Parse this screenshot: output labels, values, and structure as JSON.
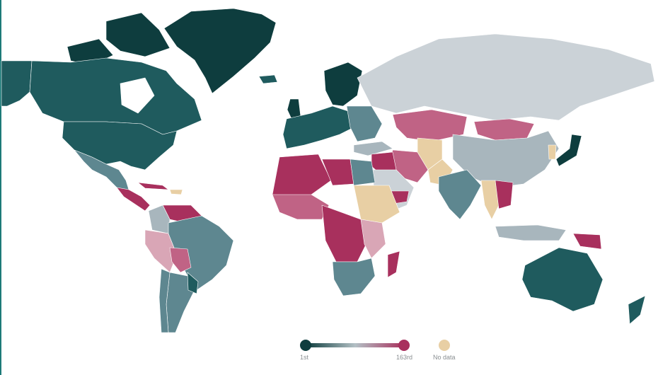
{
  "colors": {
    "best": "#0e3d3e",
    "high": "#1f5b5e",
    "upper_mid": "#5e8790",
    "mid": "#a8b6bd",
    "neutral": "#cbd2d7",
    "low_mid": "#d9a6b6",
    "low": "#c06385",
    "worst": "#a8305d",
    "no_data": "#e8cfa4",
    "gradient_mid": "#b3c0c5",
    "accent_edge": "#1d7a78"
  },
  "legend": {
    "min_label": "1st",
    "max_label": "163rd",
    "no_data_label": "No data"
  }
}
